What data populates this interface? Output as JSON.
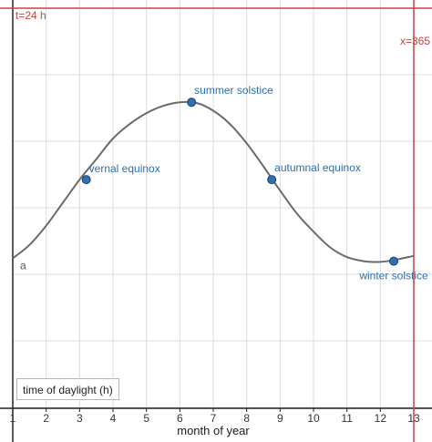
{
  "chart_data": {
    "type": "line",
    "xlabel": "month of year",
    "ylabel": "",
    "legend": "time of daylight (h)",
    "xlim": [
      1,
      13
    ],
    "x_ticks": [
      1,
      2,
      3,
      4,
      5,
      6,
      7,
      8,
      9,
      10,
      11,
      12,
      13
    ],
    "curve_label": "a",
    "series": [
      {
        "x": [
          1,
          1.5,
          2,
          2.5,
          3,
          3.5,
          4,
          4.5,
          5,
          5.5,
          6,
          6.5,
          7,
          7.5,
          8,
          8.5,
          9,
          9.5,
          10,
          10.5,
          11,
          11.5,
          12,
          12.5,
          13
        ],
        "y": [
          0.0,
          0.55,
          1.35,
          2.3,
          3.25,
          4.1,
          4.95,
          5.55,
          6.0,
          6.3,
          6.45,
          6.42,
          6.1,
          5.55,
          4.75,
          3.8,
          2.8,
          1.85,
          1.1,
          0.45,
          0.05,
          -0.12,
          -0.15,
          -0.05,
          0.1
        ],
        "color": "#6b6b6b"
      }
    ],
    "points": [
      {
        "label": "vernal equinox",
        "x": 3.2,
        "y": 3.25
      },
      {
        "label": "summer solstice",
        "x": 6.35,
        "y": 6.45
      },
      {
        "label": "autumnal equinox",
        "x": 8.75,
        "y": 3.25
      },
      {
        "label": "winter solstice",
        "x": 12.4,
        "y": -0.12
      }
    ],
    "reference_lines": [
      {
        "orientation": "horizontal",
        "label": "t=24 h",
        "color": "#c74440"
      },
      {
        "orientation": "vertical",
        "label": "x=365",
        "color": "#c74440"
      }
    ],
    "grid": true
  }
}
